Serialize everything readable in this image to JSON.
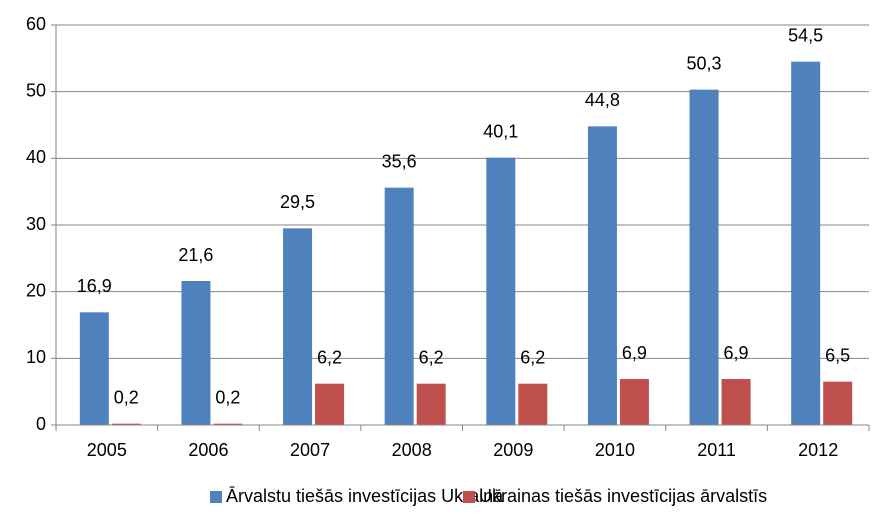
{
  "chart_data": {
    "type": "bar",
    "categories": [
      "2005",
      "2006",
      "2007",
      "2008",
      "2009",
      "2010",
      "2011",
      "2012"
    ],
    "series": [
      {
        "name": "Ārvalstu tiešās investīcijas Ukrainā",
        "color": "#4f81bd",
        "values": [
          16.9,
          21.6,
          29.5,
          35.6,
          40.1,
          44.8,
          50.3,
          54.5
        ],
        "value_labels": [
          "16,9",
          "21,6",
          "29,5",
          "35,6",
          "40,1",
          "44,8",
          "50,3",
          "54,5"
        ]
      },
      {
        "name": "Ukrainas tiešās investīcijas ārvalstīs",
        "color": "#c0504d",
        "values": [
          0.2,
          0.2,
          6.2,
          6.2,
          6.2,
          6.9,
          6.9,
          6.5
        ],
        "value_labels": [
          "0,2",
          "0,2",
          "6,2",
          "6,2",
          "6,2",
          "6,9",
          "6,9",
          "6,5"
        ]
      }
    ],
    "ylim": [
      0,
      60
    ],
    "yticks": [
      0,
      10,
      20,
      30,
      40,
      50,
      60
    ],
    "grid": true,
    "legend": "bottom"
  }
}
